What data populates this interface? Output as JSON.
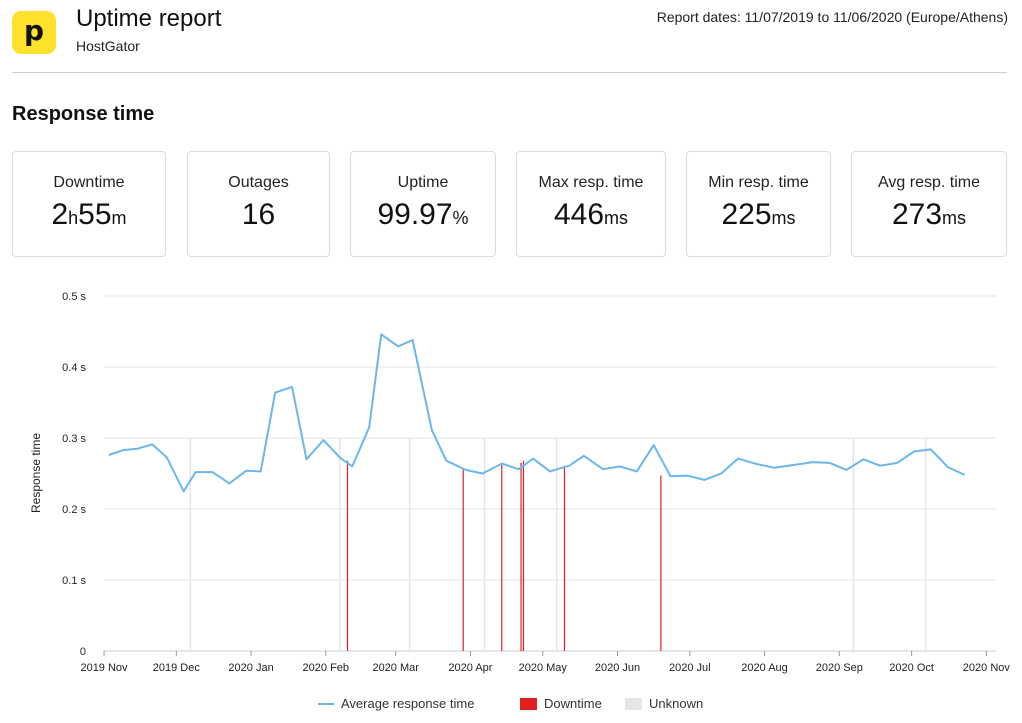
{
  "header": {
    "logo_glyph": "p",
    "title": "Uptime report",
    "subtitle": "HostGator",
    "report_dates": "Report dates: 11/07/2019 to 11/06/2020 (Europe/Athens)"
  },
  "section_title": "Response time",
  "stats": [
    {
      "label": "Downtime",
      "parts": [
        {
          "t": "2",
          "unit": false
        },
        {
          "t": "h",
          "unit": true
        },
        {
          "t": "55",
          "unit": false
        },
        {
          "t": "m",
          "unit": true
        }
      ]
    },
    {
      "label": "Outages",
      "parts": [
        {
          "t": "16",
          "unit": false
        }
      ]
    },
    {
      "label": "Uptime",
      "parts": [
        {
          "t": "99.97",
          "unit": false
        },
        {
          "t": "%",
          "unit": true
        }
      ]
    },
    {
      "label": "Max resp. time",
      "parts": [
        {
          "t": "446",
          "unit": false
        },
        {
          "t": "ms",
          "unit": true
        }
      ]
    },
    {
      "label": "Min resp. time",
      "parts": [
        {
          "t": "225",
          "unit": false
        },
        {
          "t": "ms",
          "unit": true
        }
      ]
    },
    {
      "label": "Avg resp. time",
      "parts": [
        {
          "t": "273",
          "unit": false
        },
        {
          "t": "ms",
          "unit": true
        }
      ]
    }
  ],
  "colors": {
    "line": "#6cb6ec",
    "downtime": "#e02020",
    "unknown": "#e6e6e6",
    "grid": "#e3e3e3",
    "logo": "#fde12b"
  },
  "chart_data": {
    "type": "line",
    "ylabel": "Response time",
    "xlabel": "",
    "ylim": [
      0,
      0.5
    ],
    "yticks": [
      {
        "v": 0,
        "label": "0"
      },
      {
        "v": 0.1,
        "label": "0.1 s"
      },
      {
        "v": 0.2,
        "label": "0.2 s"
      },
      {
        "v": 0.3,
        "label": "0.3 s"
      },
      {
        "v": 0.4,
        "label": "0.4 s"
      },
      {
        "v": 0.5,
        "label": "0.5 s"
      }
    ],
    "xlim": [
      "2019-11-01",
      "2020-11-05"
    ],
    "xticks": [
      {
        "date": "2019-11-01",
        "label": "2019 Nov"
      },
      {
        "date": "2019-12-01",
        "label": "2019 Dec"
      },
      {
        "date": "2020-01-01",
        "label": "2020 Jan"
      },
      {
        "date": "2020-02-01",
        "label": "2020 Feb"
      },
      {
        "date": "2020-03-01",
        "label": "2020 Mar"
      },
      {
        "date": "2020-04-01",
        "label": "2020 Apr"
      },
      {
        "date": "2020-05-01",
        "label": "2020 May"
      },
      {
        "date": "2020-06-01",
        "label": "2020 Jun"
      },
      {
        "date": "2020-07-01",
        "label": "2020 Jul"
      },
      {
        "date": "2020-08-01",
        "label": "2020 Aug"
      },
      {
        "date": "2020-09-01",
        "label": "2020 Sep"
      },
      {
        "date": "2020-10-01",
        "label": "2020 Oct"
      },
      {
        "date": "2020-11-01",
        "label": "2020 Nov"
      }
    ],
    "series": [
      {
        "name": "Average response time",
        "points": [
          [
            "2019-11-03",
            0.276
          ],
          [
            "2019-11-09",
            0.283
          ],
          [
            "2019-11-15",
            0.285
          ],
          [
            "2019-11-21",
            0.291
          ],
          [
            "2019-11-27",
            0.273
          ],
          [
            "2019-12-04",
            0.225
          ],
          [
            "2019-12-09",
            0.252
          ],
          [
            "2019-12-16",
            0.252
          ],
          [
            "2019-12-23",
            0.236
          ],
          [
            "2019-12-30",
            0.254
          ],
          [
            "2020-01-05",
            0.253
          ],
          [
            "2020-01-11",
            0.364
          ],
          [
            "2020-01-18",
            0.372
          ],
          [
            "2020-01-24",
            0.27
          ],
          [
            "2020-01-31",
            0.297
          ],
          [
            "2020-02-07",
            0.272
          ],
          [
            "2020-02-12",
            0.26
          ],
          [
            "2020-02-19",
            0.315
          ],
          [
            "2020-02-24",
            0.446
          ],
          [
            "2020-03-02",
            0.429
          ],
          [
            "2020-03-08",
            0.438
          ],
          [
            "2020-03-16",
            0.311
          ],
          [
            "2020-03-22",
            0.268
          ],
          [
            "2020-03-30",
            0.255
          ],
          [
            "2020-04-06",
            0.25
          ],
          [
            "2020-04-14",
            0.264
          ],
          [
            "2020-04-21",
            0.256
          ],
          [
            "2020-04-27",
            0.271
          ],
          [
            "2020-05-04",
            0.253
          ],
          [
            "2020-05-12",
            0.261
          ],
          [
            "2020-05-18",
            0.275
          ],
          [
            "2020-05-26",
            0.256
          ],
          [
            "2020-06-02",
            0.26
          ],
          [
            "2020-06-09",
            0.253
          ],
          [
            "2020-06-16",
            0.29
          ],
          [
            "2020-06-23",
            0.246
          ],
          [
            "2020-06-30",
            0.247
          ],
          [
            "2020-07-07",
            0.241
          ],
          [
            "2020-07-14",
            0.25
          ],
          [
            "2020-07-21",
            0.271
          ],
          [
            "2020-07-28",
            0.264
          ],
          [
            "2020-08-05",
            0.258
          ],
          [
            "2020-08-13",
            0.262
          ],
          [
            "2020-08-21",
            0.266
          ],
          [
            "2020-08-28",
            0.265
          ],
          [
            "2020-09-04",
            0.255
          ],
          [
            "2020-09-11",
            0.27
          ],
          [
            "2020-09-18",
            0.261
          ],
          [
            "2020-09-25",
            0.265
          ],
          [
            "2020-10-02",
            0.281
          ],
          [
            "2020-10-09",
            0.284
          ],
          [
            "2020-10-16",
            0.259
          ],
          [
            "2020-10-23",
            0.248
          ]
        ]
      }
    ],
    "downtime_markers": [
      {
        "date": "2020-02-10",
        "value": 0.268
      },
      {
        "date": "2020-03-29",
        "value": 0.256
      },
      {
        "date": "2020-04-14",
        "value": 0.262
      },
      {
        "date": "2020-04-22",
        "value": 0.265
      },
      {
        "date": "2020-04-23",
        "value": 0.268
      },
      {
        "date": "2020-05-10",
        "value": 0.261
      },
      {
        "date": "2020-06-19",
        "value": 0.247
      }
    ],
    "legend": {
      "placement": "bottom",
      "items": [
        {
          "label": "Average response time",
          "kind": "line"
        },
        {
          "label": "Downtime",
          "kind": "downtime"
        },
        {
          "label": "Unknown",
          "kind": "unknown"
        }
      ]
    },
    "grid": true
  }
}
